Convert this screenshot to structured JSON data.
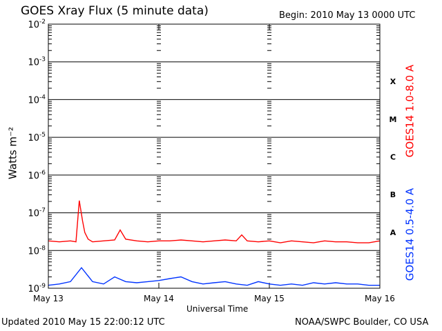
{
  "header": {
    "title": "GOES Xray Flux (5 minute data)",
    "begin_label": "Begin:  2010 May 13 0000 UTC"
  },
  "footer": {
    "updated": "Updated 2010 May 15 22:00:12 UTC",
    "credit": "NOAA/SWPC Boulder, CO USA"
  },
  "colors": {
    "long": "#ff0000",
    "short": "#0033ff",
    "axis": "#000000"
  },
  "chart_data": {
    "type": "line",
    "title": "GOES Xray Flux (5 minute data)",
    "xlabel": "Universal Time",
    "ylabel": "Watts m⁻²",
    "yscale": "log",
    "ylim": [
      1e-09,
      0.01
    ],
    "x_tick_labels": [
      "May 13",
      "May 14",
      "May 15",
      "May 16"
    ],
    "x_unit": "days from 2010 May 13 0000 UTC",
    "xlim": [
      0,
      3
    ],
    "y_ticks": [
      {
        "base": "10",
        "exp": "-2"
      },
      {
        "base": "10",
        "exp": "-3"
      },
      {
        "base": "10",
        "exp": "-4"
      },
      {
        "base": "10",
        "exp": "-5"
      },
      {
        "base": "10",
        "exp": "-6"
      },
      {
        "base": "10",
        "exp": "-7"
      },
      {
        "base": "10",
        "exp": "-8"
      },
      {
        "base": "10",
        "exp": "-9"
      }
    ],
    "flare_classes": [
      "X",
      "M",
      "C",
      "B",
      "A"
    ],
    "grid": "horizontal",
    "series": [
      {
        "name": "GOES14 1.0-8.0 A",
        "color": "#ff0000",
        "x": [
          0.0,
          0.1,
          0.2,
          0.25,
          0.28,
          0.31,
          0.33,
          0.36,
          0.4,
          0.5,
          0.6,
          0.65,
          0.7,
          0.8,
          0.9,
          1.0,
          1.1,
          1.2,
          1.3,
          1.4,
          1.5,
          1.6,
          1.7,
          1.75,
          1.8,
          1.9,
          2.0,
          2.1,
          2.2,
          2.3,
          2.4,
          2.5,
          2.6,
          2.7,
          2.8,
          2.9,
          3.0
        ],
        "values": [
          1.8e-08,
          1.7e-08,
          1.8e-08,
          1.7e-08,
          2.1e-07,
          6e-08,
          3e-08,
          2e-08,
          1.7e-08,
          1.8e-08,
          1.9e-08,
          3.5e-08,
          2e-08,
          1.8e-08,
          1.7e-08,
          1.8e-08,
          1.8e-08,
          1.9e-08,
          1.8e-08,
          1.7e-08,
          1.8e-08,
          1.9e-08,
          1.8e-08,
          2.6e-08,
          1.8e-08,
          1.7e-08,
          1.8e-08,
          1.6e-08,
          1.8e-08,
          1.7e-08,
          1.6e-08,
          1.8e-08,
          1.7e-08,
          1.7e-08,
          1.6e-08,
          1.6e-08,
          1.8e-08
        ]
      },
      {
        "name": "GOES14 0.5-4.0 A",
        "color": "#0033ff",
        "x": [
          0.0,
          0.1,
          0.2,
          0.3,
          0.4,
          0.5,
          0.6,
          0.7,
          0.8,
          0.9,
          1.0,
          1.1,
          1.2,
          1.3,
          1.4,
          1.5,
          1.6,
          1.7,
          1.8,
          1.9,
          2.0,
          2.1,
          2.2,
          2.3,
          2.4,
          2.5,
          2.6,
          2.7,
          2.8,
          2.9,
          3.0
        ],
        "values": [
          1.2e-09,
          1.3e-09,
          1.5e-09,
          3.5e-09,
          1.5e-09,
          1.3e-09,
          2e-09,
          1.5e-09,
          1.4e-09,
          1.5e-09,
          1.6e-09,
          1.8e-09,
          2e-09,
          1.5e-09,
          1.3e-09,
          1.4e-09,
          1.5e-09,
          1.3e-09,
          1.2e-09,
          1.5e-09,
          1.3e-09,
          1.2e-09,
          1.3e-09,
          1.2e-09,
          1.4e-09,
          1.3e-09,
          1.4e-09,
          1.3e-09,
          1.3e-09,
          1.2e-09,
          1.2e-09
        ]
      }
    ]
  }
}
